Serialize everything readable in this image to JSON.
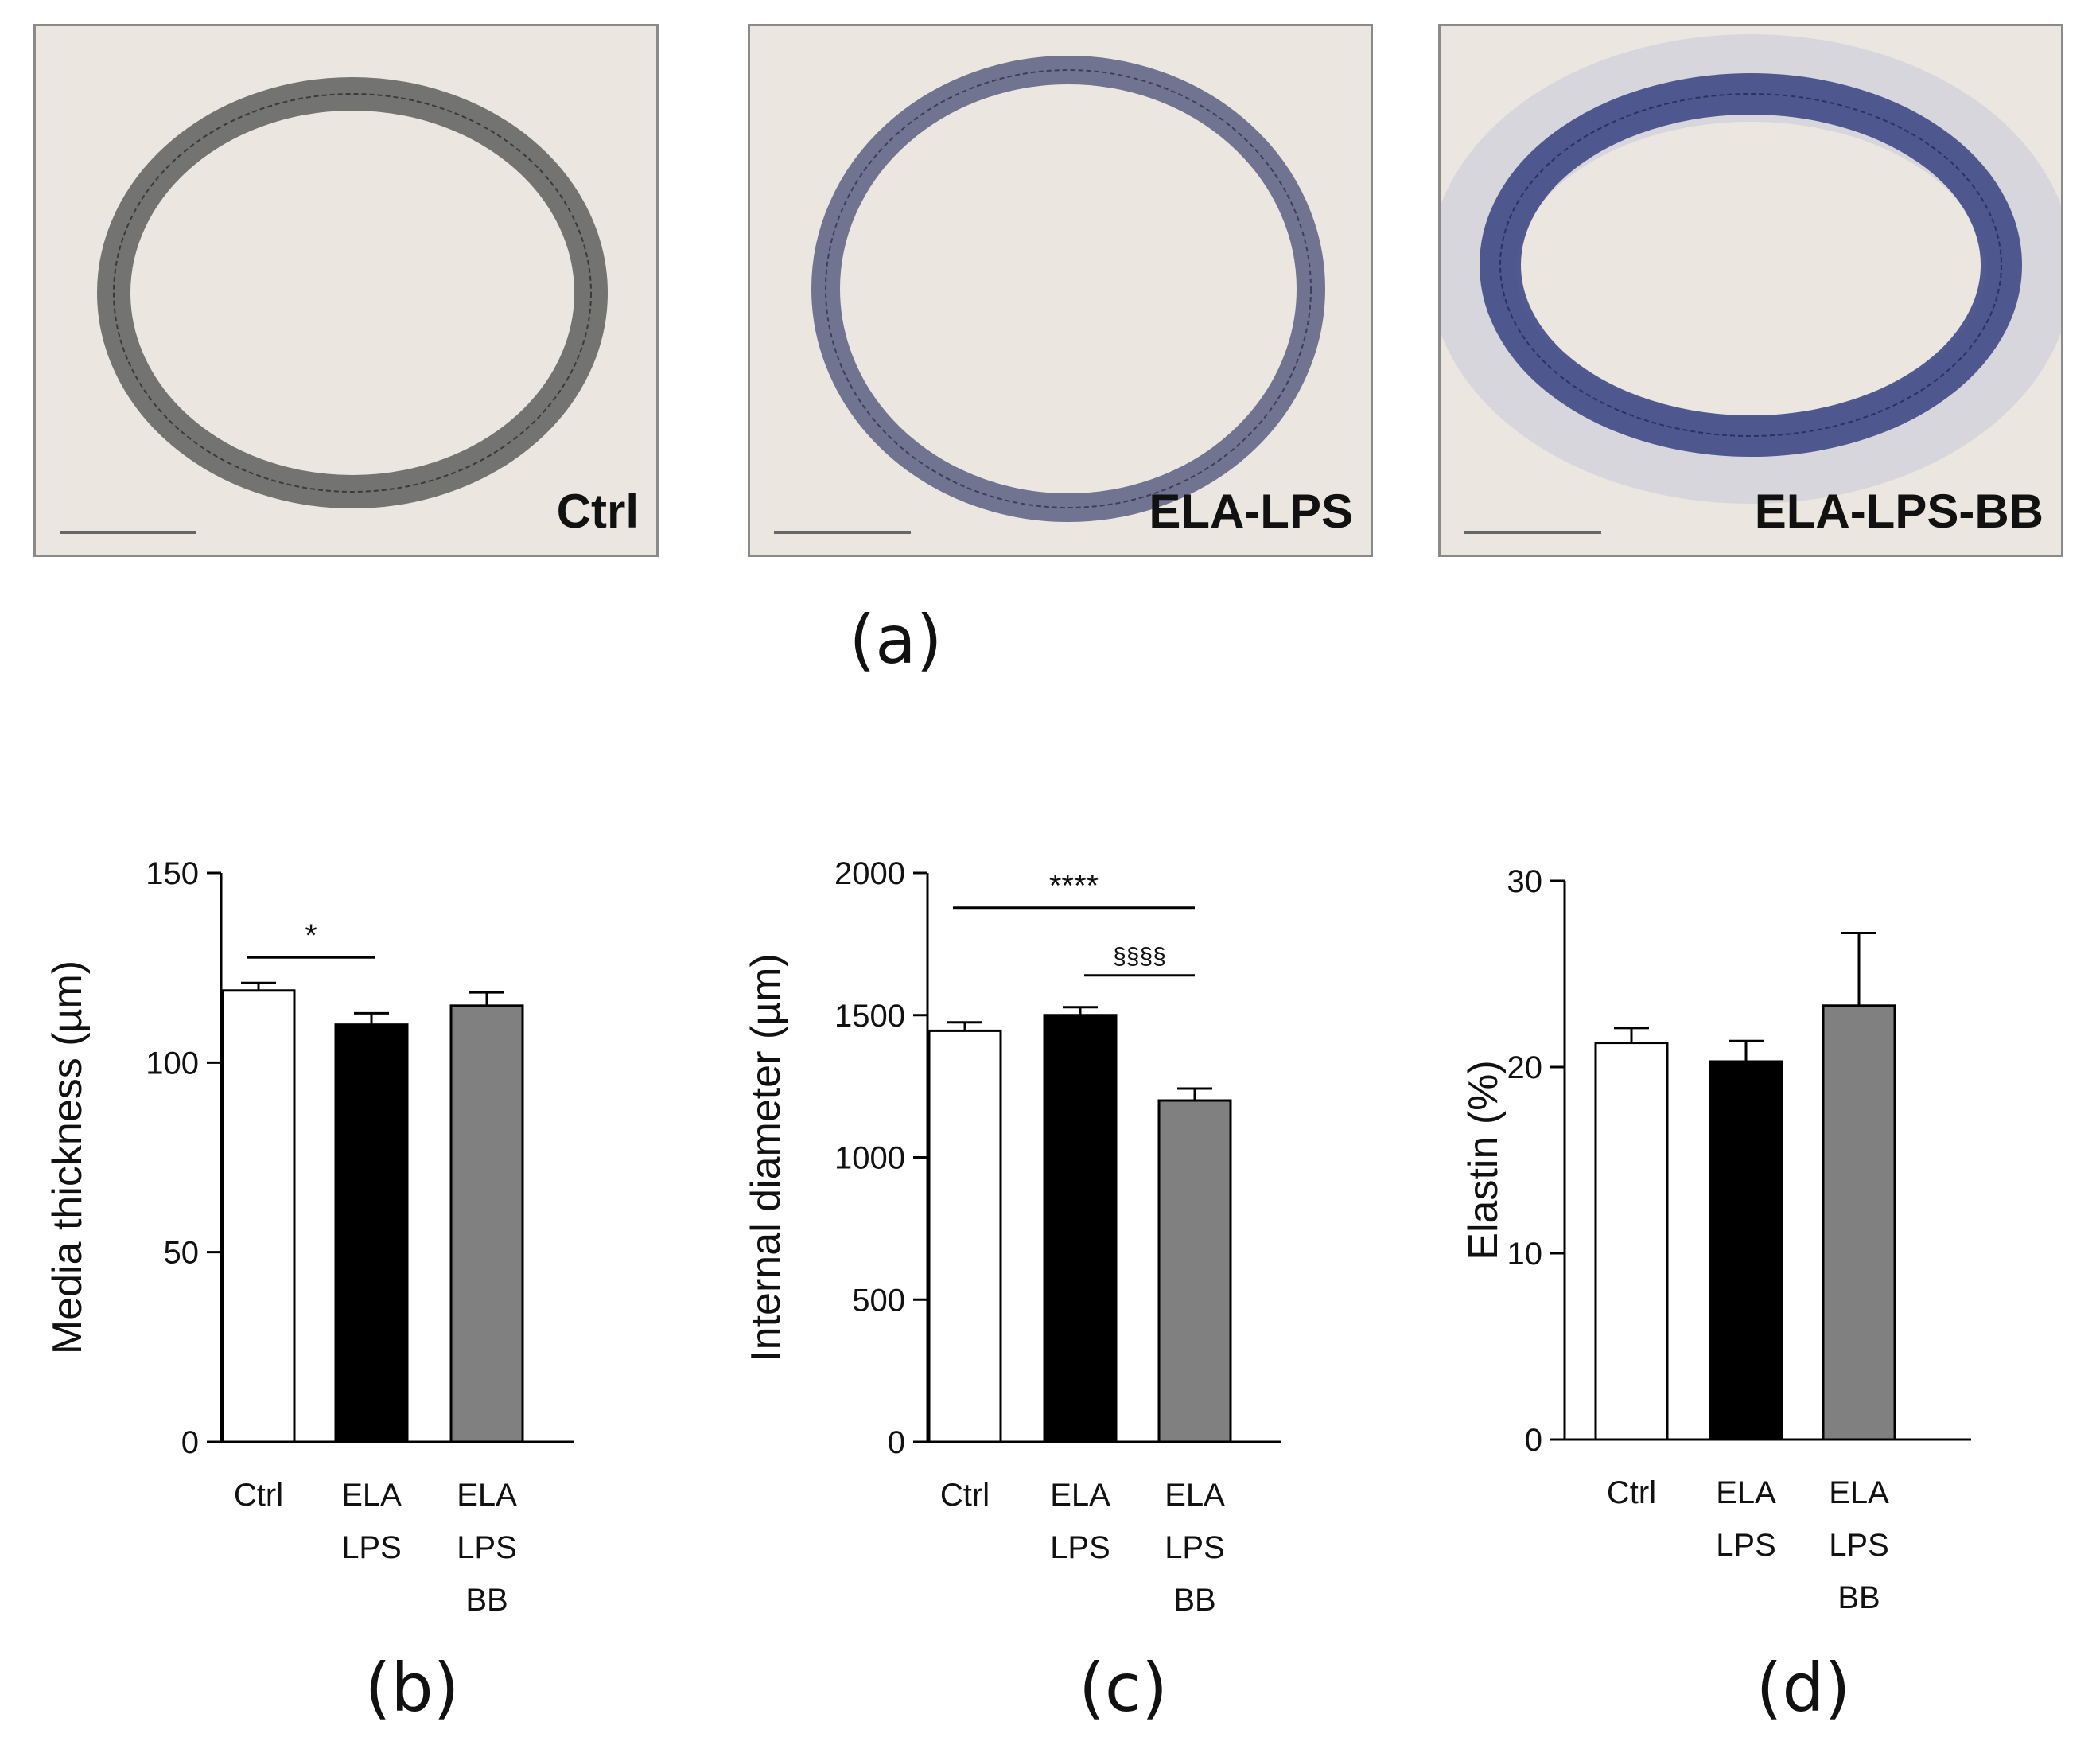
{
  "micrographs": [
    {
      "label": "Ctrl",
      "stain": "#555555"
    },
    {
      "label": "ELA-LPS",
      "stain": "#5a5f82"
    },
    {
      "label": "ELA-LPS-BB",
      "stain": "#3f4a86"
    }
  ],
  "panel_labels": {
    "a": "(a)",
    "b": "(b)",
    "c": "(c)",
    "d": "(d)"
  },
  "colors": {
    "ctrl": "#ffffff",
    "ela_lps": "#000000",
    "ela_lps_bb": "#808080"
  },
  "chart_data": [
    {
      "type": "bar",
      "categories": [
        [
          "Ctrl"
        ],
        [
          "ELA",
          "LPS"
        ],
        [
          "ELA",
          "LPS",
          "BB"
        ]
      ],
      "values": [
        119,
        110,
        115
      ],
      "errors": [
        2,
        3,
        3.5
      ],
      "ylabel": "Media thickness (µm)",
      "ylim": [
        0,
        150
      ],
      "yticks": [
        "0",
        "50",
        "100",
        "150"
      ],
      "significance": [
        {
          "from": 0,
          "to": 1,
          "label": "*"
        }
      ]
    },
    {
      "type": "bar",
      "categories": [
        [
          "Ctrl"
        ],
        [
          "ELA",
          "LPS"
        ],
        [
          "ELA",
          "LPS",
          "BB"
        ]
      ],
      "values": [
        1445,
        1500,
        1200
      ],
      "errors": [
        30,
        28,
        42
      ],
      "ylabel": "Internal diameter (µm)",
      "ylim": [
        0,
        2000
      ],
      "yticks": [
        "0",
        "500",
        "1000",
        "1500",
        "2000"
      ],
      "significance": [
        {
          "from": 0,
          "to": 2,
          "label": "****"
        },
        {
          "from": 1,
          "to": 2,
          "label": "§§§§"
        }
      ]
    },
    {
      "type": "bar",
      "categories": [
        [
          "Ctrl"
        ],
        [
          "ELA",
          "LPS"
        ],
        [
          "ELA",
          "LPS",
          "BB"
        ]
      ],
      "values": [
        21.3,
        20.3,
        23.3
      ],
      "errors": [
        0.8,
        1.1,
        3.9
      ],
      "ylabel": "Elastin (%)",
      "ylim": [
        0,
        30
      ],
      "yticks": [
        "0",
        "10",
        "20",
        "30"
      ],
      "significance": []
    }
  ]
}
